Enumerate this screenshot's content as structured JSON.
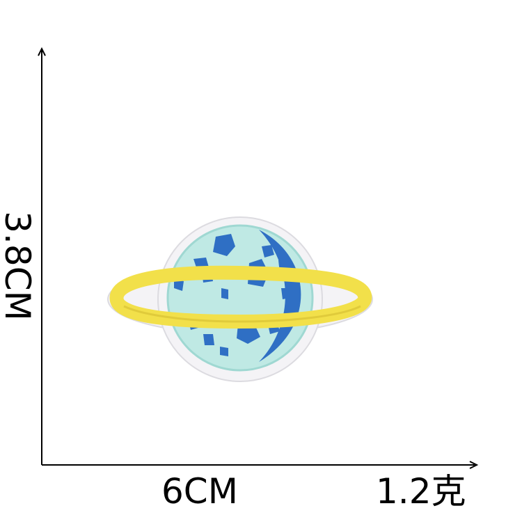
{
  "labels": {
    "height": "3.8CM",
    "width": "6CM",
    "weight": "1.2克"
  },
  "colors": {
    "axis": "#000000",
    "patch_border": "#f4f3f6",
    "planet_fill": "#bfe9e4",
    "planet_spots": "#2f6fc4",
    "ring": "#f2e04a",
    "ring_shadow": "#d8c235"
  },
  "product": {
    "subject": "embroidered-planet-patch-icon"
  }
}
